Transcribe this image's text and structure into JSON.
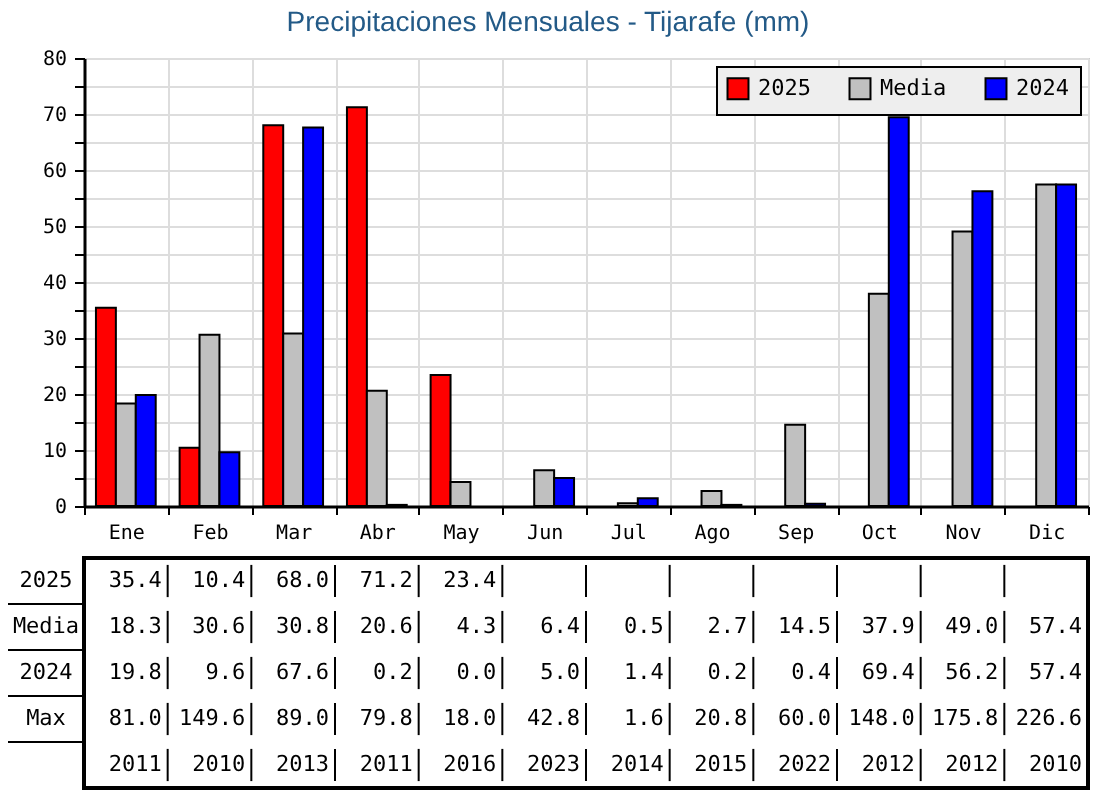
{
  "chart_data": {
    "type": "bar",
    "title": "Precipitaciones Mensuales - Tijarafe (mm)",
    "categories": [
      "Ene",
      "Feb",
      "Mar",
      "Abr",
      "May",
      "Jun",
      "Jul",
      "Ago",
      "Sep",
      "Oct",
      "Nov",
      "Dic"
    ],
    "series": [
      {
        "name": "2025",
        "color": "#ff0000",
        "values": [
          35.4,
          10.4,
          68.0,
          71.2,
          23.4,
          null,
          null,
          null,
          null,
          null,
          null,
          null
        ],
        "value_labels": [
          "35.4",
          "10.4",
          "68.0",
          "71.2",
          "23.4",
          null,
          null,
          null,
          null,
          null,
          null,
          null
        ]
      },
      {
        "name": "Media",
        "color": "#c0c0c0",
        "values": [
          18.3,
          30.6,
          30.8,
          20.6,
          4.3,
          6.4,
          0.5,
          2.7,
          14.5,
          37.9,
          49.0,
          57.4
        ],
        "value_labels": [
          "18.3",
          "30.6",
          "30.8",
          "20.6",
          "4.3",
          "6.4",
          "0.5",
          "2.7",
          "14.5",
          "37.9",
          "49.0",
          "57.4"
        ]
      },
      {
        "name": "2024",
        "color": "#0000ff",
        "values": [
          19.8,
          9.6,
          67.6,
          0.2,
          0.0,
          5.0,
          1.4,
          0.2,
          0.4,
          69.4,
          56.2,
          57.4
        ],
        "value_labels": [
          "19.8",
          "9.6",
          "67.6",
          "0.2",
          "0.0",
          "5.0",
          "1.4",
          "0.2",
          "0.4",
          "69.4",
          "56.2",
          "57.4"
        ]
      }
    ],
    "ylim": [
      0,
      80
    ],
    "yticks": [
      0,
      {
        "value": 5,
        "label": null
      },
      10,
      {
        "value": 15,
        "label": null
      },
      20,
      {
        "value": 25,
        "label": null
      },
      30,
      {
        "value": 35,
        "label": null
      },
      40,
      {
        "value": 45,
        "label": null
      },
      50,
      {
        "value": 55,
        "label": null
      },
      60,
      {
        "value": 65,
        "label": null
      },
      70,
      {
        "value": 75,
        "label": null
      },
      80
    ],
    "grid": true,
    "legend": "top right",
    "annotations": [
      "Max",
      "81.0",
      "149.6",
      "89.0",
      "79.8",
      "18.0",
      "42.8",
      "1.6",
      "20.8",
      "60.0",
      "148.0",
      "175.8",
      "226.6",
      "2011",
      "2010",
      "2013",
      "2011",
      "2016",
      "2023",
      "2014",
      "2015",
      "2022",
      "2012",
      "2012",
      "2010"
    ]
  }
}
